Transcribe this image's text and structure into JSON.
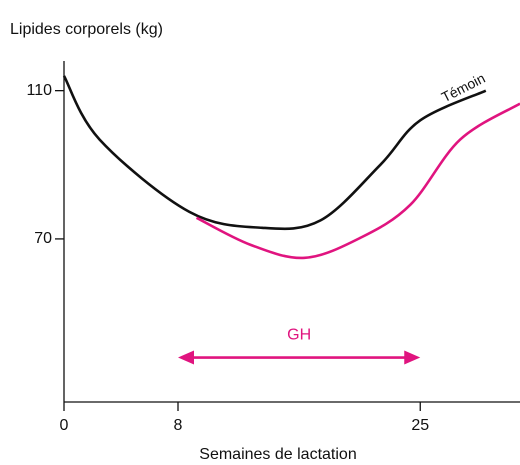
{
  "chart_data": {
    "type": "line",
    "y_label": "Lipides corporels (kg)",
    "x_label": "Semaines de lactation",
    "xlim": [
      0,
      32
    ],
    "ylim": [
      26,
      118
    ],
    "xticks": [
      0,
      8,
      25
    ],
    "yticks": [
      70,
      110
    ],
    "series": [
      {
        "name": "Témoin",
        "color": "#111111",
        "x": [
          0,
          2.5,
          8.8,
          13.9,
          18,
          22.2,
          25,
          29.6
        ],
        "values": [
          114,
          96.8,
          77.3,
          73,
          75,
          90,
          102,
          110
        ]
      },
      {
        "name": "GH",
        "color": "#e0147f",
        "x": [
          9.3,
          13.1,
          16.9,
          20.8,
          24.3,
          27.8,
          32
        ],
        "values": [
          75.7,
          68.4,
          64.9,
          70.3,
          79.2,
          96.8,
          106.5
        ]
      }
    ],
    "arrow": {
      "x": [
        8,
        25
      ],
      "y": 38
    }
  }
}
